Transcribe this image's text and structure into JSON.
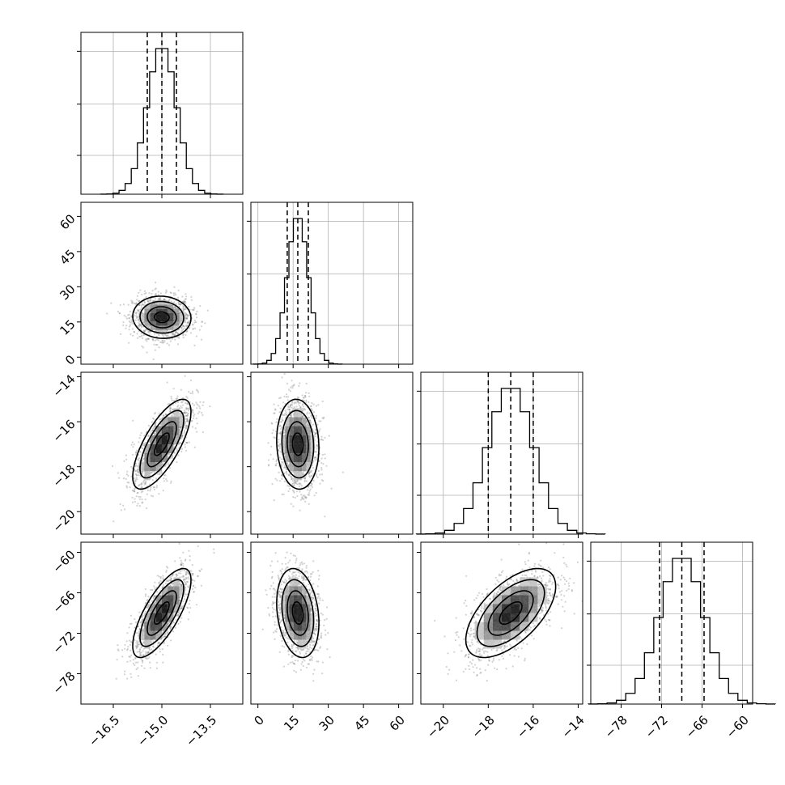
{
  "chart_data": {
    "type": "corner",
    "title": "",
    "parameters": [
      {
        "label": "",
        "range": [
          -17.5,
          -12.5
        ],
        "mean": -15.0,
        "sigma": 0.45,
        "quantiles": [
          -15.45,
          -15.0,
          -14.55
        ],
        "ticks": [
          -16.5,
          -15.0,
          -13.5
        ],
        "tick_labels": [
          "−16.5",
          "−15.0",
          "−13.5"
        ]
      },
      {
        "label": "",
        "range": [
          -3,
          66
        ],
        "mean": 17.0,
        "sigma": 4.5,
        "quantiles": [
          12.5,
          17.0,
          21.5
        ],
        "ticks": [
          0,
          15,
          30,
          45,
          60
        ],
        "tick_labels": [
          "0",
          "15",
          "30",
          "45",
          "60"
        ]
      },
      {
        "label": "",
        "range": [
          -21.0,
          -13.8
        ],
        "mean": -17.0,
        "sigma": 1.0,
        "quantiles": [
          -18.0,
          -17.0,
          -16.0
        ],
        "ticks": [
          -20,
          -18,
          -16,
          -14
        ],
        "tick_labels": [
          "−20",
          "−18",
          "−16",
          "−14"
        ]
      },
      {
        "label": "",
        "range": [
          -82.5,
          -58.5
        ],
        "mean": -69.0,
        "sigma": 3.3,
        "quantiles": [
          -72.3,
          -69.0,
          -65.7
        ],
        "ticks": [
          -78,
          -72,
          -66,
          -60
        ],
        "tick_labels": [
          "−78",
          "−72",
          "−66",
          "−60"
        ]
      }
    ],
    "correlations": [
      {
        "x": 0,
        "y": 1,
        "rho": -0.05
      },
      {
        "x": 0,
        "y": 2,
        "rho": 0.72
      },
      {
        "x": 1,
        "y": 2,
        "rho": -0.08
      },
      {
        "x": 0,
        "y": 3,
        "rho": 0.74
      },
      {
        "x": 1,
        "y": 3,
        "rho": -0.22
      },
      {
        "x": 2,
        "y": 3,
        "rho": 0.6
      }
    ],
    "contour_levels_sigma": [
      0.5,
      1.0,
      1.5,
      2.0
    ],
    "histogram_bins": 20,
    "grid": true,
    "show_samples": true
  }
}
